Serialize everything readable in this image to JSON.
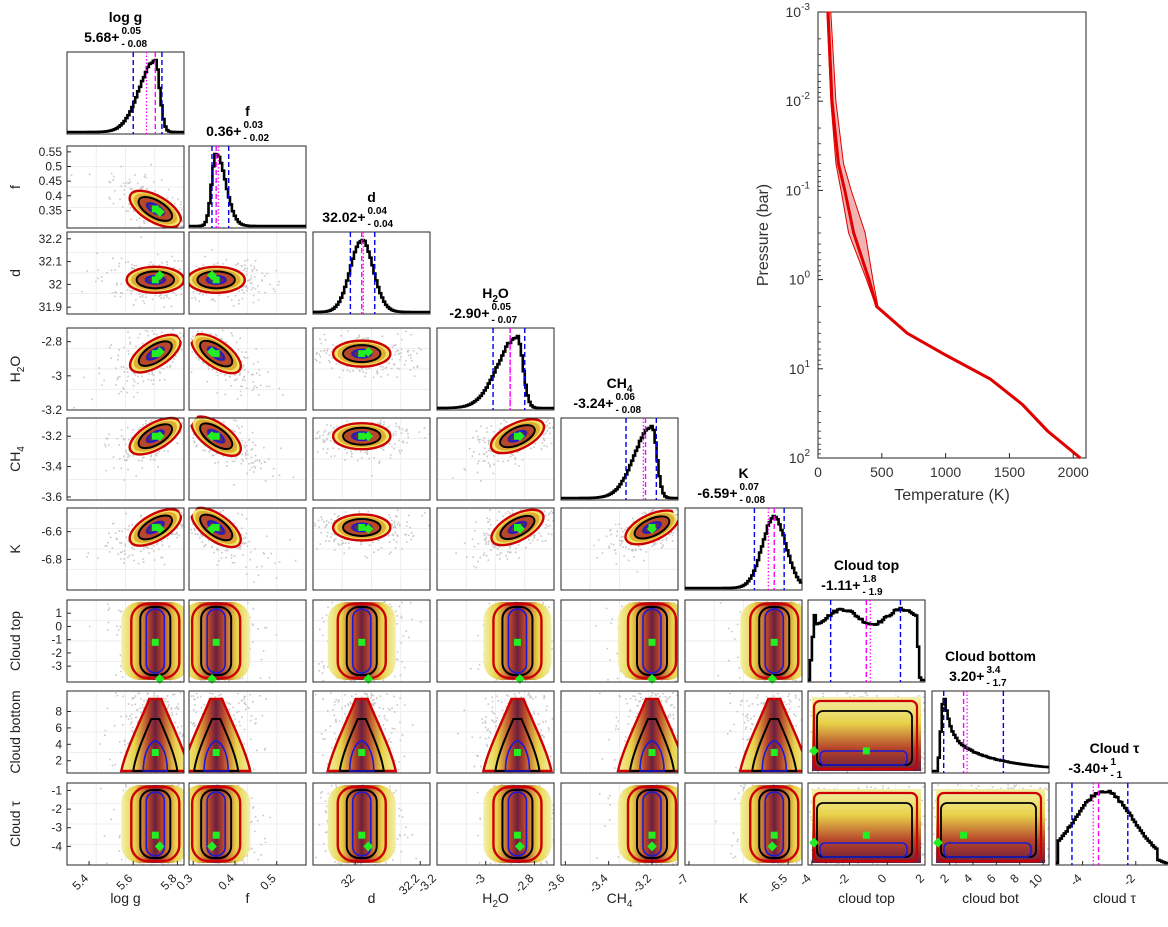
{
  "chart_data": {
    "type": "corner_plot_with_profile",
    "parameters": [
      {
        "key": "logg",
        "title": "log g",
        "median": "5.68",
        "err_plus": "0.05",
        "err_minus": "0.08",
        "xlabel": "log g",
        "ylabel": "",
        "range": [
          5.3,
          5.83
        ],
        "xticks": [
          "5.4",
          "5.6",
          "5.8"
        ],
        "xtick_values": [
          5.4,
          5.6,
          5.8
        ],
        "yticks": [],
        "yticks_values": [],
        "peak": 5.7,
        "lo": 5.6,
        "hi": 5.73,
        "mean": 5.66,
        "median_x": 5.7,
        "sigma": 0.045,
        "shape": "skewleft",
        "truth": 5.72
      },
      {
        "key": "f",
        "title": "f",
        "median": "0.36",
        "err_plus": "0.03",
        "err_minus": "0.02",
        "xlabel": "f",
        "ylabel": "f",
        "range": [
          0.29,
          0.57
        ],
        "xticks": [
          "0.3",
          "0.4",
          "0.5"
        ],
        "xtick_values": [
          0.3,
          0.4,
          0.5
        ],
        "yticks": [
          "0.55",
          "0.5",
          "0.45",
          "0.4",
          "0.35"
        ],
        "yticks_values": [
          0.55,
          0.5,
          0.45,
          0.4,
          0.35
        ],
        "peak": 0.355,
        "lo": 0.345,
        "hi": 0.385,
        "mean": 0.36,
        "median_x": 0.355,
        "sigma": 0.015,
        "shape": "skewright",
        "truth": 0.345
      },
      {
        "key": "d",
        "title": "d",
        "median": "32.02",
        "err_plus": "0.04",
        "err_minus": "0.04",
        "xlabel": "d",
        "ylabel": "d",
        "range": [
          31.87,
          32.23
        ],
        "xticks": [
          "32",
          "32.2"
        ],
        "xtick_values": [
          32,
          32.2
        ],
        "yticks": [
          "32.2",
          "32.1",
          "32",
          "31.9"
        ],
        "yticks_values": [
          32.2,
          32.1,
          32,
          31.9
        ],
        "peak": 32.02,
        "lo": 31.985,
        "hi": 32.06,
        "mean": 32.025,
        "median_x": 32.02,
        "sigma": 0.035,
        "shape": "gauss",
        "truth": 32.04
      },
      {
        "key": "h2o",
        "title": "H2O",
        "median": "-2.90",
        "err_plus": "0.05",
        "err_minus": "0.07",
        "xlabel": "H2O",
        "ylabel": "H2O",
        "range": [
          -3.2,
          -2.72
        ],
        "xticks": [
          "-3.2",
          "-3",
          "-2.8"
        ],
        "xtick_values": [
          -3.2,
          -3,
          -2.8
        ],
        "yticks": [
          "-2.8",
          "-3",
          "-3.2"
        ],
        "yticks_values": [
          -2.8,
          -3,
          -3.2
        ],
        "peak": -2.87,
        "lo": -2.97,
        "hi": -2.84,
        "mean": -2.9,
        "median_x": -2.9,
        "sigma": 0.05,
        "shape": "skewleft",
        "truth": -2.86
      },
      {
        "key": "ch4",
        "title": "CH4",
        "median": "-3.24",
        "err_plus": "0.06",
        "err_minus": "0.08",
        "xlabel": "CH4",
        "ylabel": "CH4",
        "range": [
          -3.62,
          -3.08
        ],
        "xticks": [
          "-3.6",
          "-3.4",
          "-3.2"
        ],
        "xtick_values": [
          -3.6,
          -3.4,
          -3.2
        ],
        "yticks": [
          "-3.2",
          "-3.4",
          "-3.6"
        ],
        "yticks_values": [
          -3.2,
          -3.4,
          -3.6
        ],
        "peak": -3.2,
        "lo": -3.32,
        "hi": -3.18,
        "mean": -3.24,
        "median_x": -3.23,
        "sigma": 0.05,
        "shape": "skewleft",
        "truth": -3.2
      },
      {
        "key": "k",
        "title": "K",
        "median": "-6.59",
        "err_plus": "0.07",
        "err_minus": "0.08",
        "xlabel": "K",
        "ylabel": "K",
        "range": [
          -7.02,
          -6.43
        ],
        "xticks": [
          "-7",
          "-6.5"
        ],
        "xtick_values": [
          -7,
          -6.5
        ],
        "yticks": [
          "-6.4",
          "-6.6",
          "-6.8"
        ],
        "yticks_values": [
          -6.4,
          -6.6,
          -6.8
        ],
        "peak": -6.57,
        "lo": -6.67,
        "hi": -6.52,
        "mean": -6.6,
        "median_x": -6.57,
        "sigma": 0.06,
        "shape": "gauss",
        "truth": -6.58
      },
      {
        "key": "ctop",
        "title": "Cloud top",
        "median": "-1.11",
        "err_plus": "1.8",
        "err_minus": "1.9",
        "xlabel": "cloud top",
        "ylabel": "Cloud top",
        "range": [
          -4.2,
          2.0
        ],
        "xticks": [
          "-4",
          "-2",
          "0",
          "2"
        ],
        "xtick_values": [
          -4,
          -2,
          0,
          2
        ],
        "yticks": [
          "1",
          "0",
          "-1",
          "-2",
          "-3"
        ],
        "yticks_values": [
          1,
          0,
          -1,
          -2,
          -3
        ],
        "peak": 0,
        "lo": -3.0,
        "hi": 0.7,
        "mean": -0.9,
        "median_x": -1.11,
        "sigma": 1.0,
        "shape": "flat",
        "truth": -1.2
      },
      {
        "key": "cbot",
        "title": "Cloud bottom",
        "median": "3.20",
        "err_plus": "3.4",
        "err_minus": "1.7",
        "xlabel": "cloud bot",
        "ylabel": "Cloud bottom",
        "range": [
          0.5,
          10.5
        ],
        "xticks": [
          "2",
          "4",
          "6",
          "8",
          "10"
        ],
        "xtick_values": [
          2,
          4,
          6,
          8,
          10
        ],
        "yticks": [
          "8",
          "6",
          "4",
          "2"
        ],
        "yticks_values": [
          8,
          6,
          4,
          2
        ],
        "peak": 1.5,
        "lo": 1.5,
        "hi": 6.6,
        "mean": 3.5,
        "median_x": 3.2,
        "sigma": 1.0,
        "shape": "decay",
        "truth": 3.2
      },
      {
        "key": "ctau",
        "title": "Cloud τ",
        "median": "-3.40",
        "err_plus": "1",
        "err_minus": "1",
        "xlabel": "cloud τ",
        "ylabel": "Cloud τ",
        "range": [
          -5.0,
          -0.6
        ],
        "xticks": [
          "-4",
          "-2"
        ],
        "xtick_values": [
          -4,
          -2
        ],
        "yticks": [
          "-1",
          "-2",
          "-3",
          "-4"
        ],
        "yticks_values": [
          -1,
          -2,
          -3,
          -4
        ],
        "peak": -3.2,
        "lo": -4.4,
        "hi": -2.3,
        "mean": -3.6,
        "median_x": -3.4,
        "sigma": 1.0,
        "shape": "broad",
        "truth": -3.8
      }
    ],
    "tp_profile": {
      "type": "line",
      "xlabel": "Temperature (K)",
      "ylabel": "Pressure (bar)",
      "xlim": [
        0,
        2100
      ],
      "xticks": [
        "0",
        "500",
        "1000",
        "1500",
        "2000"
      ],
      "xtick_values": [
        0,
        500,
        1000,
        1500,
        2000
      ],
      "yscale": "log",
      "ylim": [
        0.001,
        100
      ],
      "yticks_base": "10",
      "ytick_exponents": [
        "-3",
        "-2",
        "-1",
        "0",
        "1",
        "2"
      ],
      "median": [
        [
          78,
          0.001
        ],
        [
          110,
          0.01
        ],
        [
          160,
          0.05
        ],
        [
          210,
          0.1
        ],
        [
          280,
          0.3
        ],
        [
          400,
          1
        ],
        [
          460,
          2
        ],
        [
          700,
          4
        ],
        [
          1000,
          7
        ],
        [
          1350,
          13
        ],
        [
          1600,
          25
        ],
        [
          1800,
          50
        ],
        [
          2055,
          100
        ]
      ],
      "lower": [
        [
          70,
          0.001
        ],
        [
          100,
          0.01
        ],
        [
          140,
          0.05
        ],
        [
          180,
          0.1
        ],
        [
          240,
          0.3
        ],
        [
          380,
          1
        ],
        [
          455,
          2
        ],
        [
          690,
          4
        ],
        [
          990,
          7
        ],
        [
          1340,
          13
        ],
        [
          1590,
          25
        ],
        [
          1790,
          50
        ],
        [
          2050,
          100
        ]
      ],
      "upper": [
        [
          100,
          0.001
        ],
        [
          140,
          0.01
        ],
        [
          200,
          0.05
        ],
        [
          260,
          0.1
        ],
        [
          370,
          0.3
        ],
        [
          430,
          1
        ],
        [
          470,
          2
        ],
        [
          710,
          4
        ],
        [
          1010,
          7
        ],
        [
          1360,
          13
        ],
        [
          1610,
          25
        ],
        [
          1810,
          50
        ],
        [
          2060,
          100
        ]
      ],
      "color": "#e00000",
      "band_color": "#f2b2b2"
    },
    "colors": {
      "scatter": "#c8c8c8",
      "contour_outer": "#cc0000",
      "contour_mid": "#000000",
      "contour_inner": "#1a1ad6",
      "marker": "#22ee22",
      "median_line": "#ff00ff",
      "ci_lines": "#0000ee",
      "hist_line": "#000000",
      "kde_colors": [
        "#f3f0a8",
        "#e8d24a",
        "#d6992a",
        "#b5432a",
        "#6b1f3f",
        "#3d2a66"
      ]
    }
  }
}
